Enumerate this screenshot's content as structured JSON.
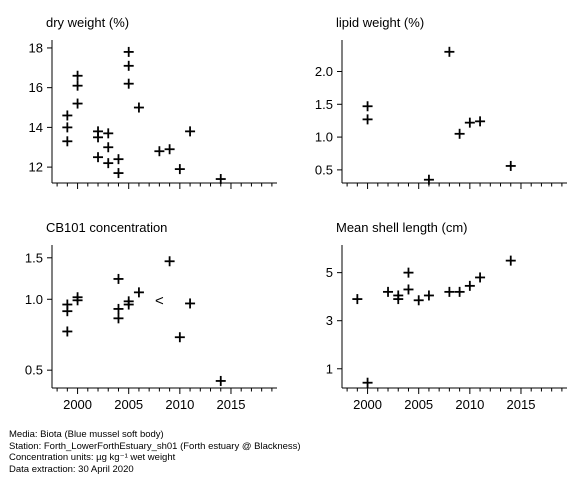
{
  "chart_data": [
    {
      "type": "scatter",
      "title": "dry weight (%)",
      "xlim": [
        1997.5,
        2019.5
      ],
      "ylim": [
        11.2,
        18.4
      ],
      "yticks": [
        12,
        14,
        16,
        18
      ],
      "yticklabels": [
        "12",
        "14",
        "16",
        "18"
      ],
      "show_xticklabels": false,
      "points": [
        {
          "x": 1999,
          "y": 14.6
        },
        {
          "x": 1999,
          "y": 14.0
        },
        {
          "x": 1999,
          "y": 13.3
        },
        {
          "x": 2000,
          "y": 16.6
        },
        {
          "x": 2000,
          "y": 16.1
        },
        {
          "x": 2000,
          "y": 15.2
        },
        {
          "x": 2002,
          "y": 13.8
        },
        {
          "x": 2002,
          "y": 13.5
        },
        {
          "x": 2002,
          "y": 12.5
        },
        {
          "x": 2003,
          "y": 13.7
        },
        {
          "x": 2003,
          "y": 13.0
        },
        {
          "x": 2003,
          "y": 12.2
        },
        {
          "x": 2004,
          "y": 12.4
        },
        {
          "x": 2004,
          "y": 11.7
        },
        {
          "x": 2005,
          "y": 17.8
        },
        {
          "x": 2005,
          "y": 17.1
        },
        {
          "x": 2005,
          "y": 16.2
        },
        {
          "x": 2006,
          "y": 15.0
        },
        {
          "x": 2008,
          "y": 12.8
        },
        {
          "x": 2009,
          "y": 12.9
        },
        {
          "x": 2010,
          "y": 11.9
        },
        {
          "x": 2011,
          "y": 13.8
        },
        {
          "x": 2014,
          "y": 11.4
        }
      ]
    },
    {
      "type": "scatter",
      "title": "lipid weight (%)",
      "xlim": [
        1997.5,
        2019.5
      ],
      "ylim": [
        0.3,
        2.48
      ],
      "yticks": [
        0.5,
        1.0,
        1.5,
        2.0
      ],
      "yticklabels": [
        "0.5",
        "1.0",
        "1.5",
        "2.0"
      ],
      "show_xticklabels": false,
      "points": [
        {
          "x": 2000,
          "y": 1.47
        },
        {
          "x": 2000,
          "y": 1.27
        },
        {
          "x": 2006,
          "y": 0.35
        },
        {
          "x": 2008,
          "y": 2.3
        },
        {
          "x": 2009,
          "y": 1.05
        },
        {
          "x": 2010,
          "y": 1.22
        },
        {
          "x": 2011,
          "y": 1.24
        },
        {
          "x": 2014,
          "y": 0.56
        }
      ]
    },
    {
      "type": "scatter",
      "title": "CB101 concentration",
      "xlim": [
        1997.5,
        2019.5
      ],
      "ylim": [
        0.42,
        1.7
      ],
      "ylog": true,
      "yticks": [
        0.5,
        1.0,
        1.5
      ],
      "yticklabels": [
        "0.5",
        "1.0",
        "1.5"
      ],
      "show_xticklabels": true,
      "xticks": [
        2000,
        2005,
        2010,
        2015
      ],
      "xticklabels": [
        "2000",
        "2005",
        "2010",
        "2015"
      ],
      "points": [
        {
          "x": 1999,
          "y": 0.95
        },
        {
          "x": 1999,
          "y": 0.89
        },
        {
          "x": 1999,
          "y": 0.73
        },
        {
          "x": 2000,
          "y": 1.02
        },
        {
          "x": 2000,
          "y": 0.99
        },
        {
          "x": 2004,
          "y": 1.22
        },
        {
          "x": 2004,
          "y": 0.91
        },
        {
          "x": 2004,
          "y": 0.83
        },
        {
          "x": 2005,
          "y": 0.98
        },
        {
          "x": 2005,
          "y": 0.95
        },
        {
          "x": 2006,
          "y": 1.07
        },
        {
          "x": 2009,
          "y": 1.45
        },
        {
          "x": 2010,
          "y": 0.69
        },
        {
          "x": 2011,
          "y": 0.96
        },
        {
          "x": 2014,
          "y": 0.45
        }
      ],
      "censored_points": [
        {
          "x": 2008,
          "y": 0.99,
          "marker": "<"
        }
      ]
    },
    {
      "type": "scatter",
      "title": "Mean shell length (cm)",
      "xlim": [
        1997.5,
        2019.5
      ],
      "ylim": [
        0.2,
        6.15
      ],
      "yticks": [
        1,
        3,
        5
      ],
      "yticklabels": [
        "1",
        "3",
        "5"
      ],
      "show_xticklabels": true,
      "xticks": [
        2000,
        2005,
        2010,
        2015
      ],
      "xticklabels": [
        "2000",
        "2005",
        "2010",
        "2015"
      ],
      "points": [
        {
          "x": 1999,
          "y": 3.9
        },
        {
          "x": 2000,
          "y": 0.42
        },
        {
          "x": 2002,
          "y": 4.2
        },
        {
          "x": 2003,
          "y": 4.05
        },
        {
          "x": 2003,
          "y": 3.9
        },
        {
          "x": 2004,
          "y": 5.0
        },
        {
          "x": 2004,
          "y": 4.3
        },
        {
          "x": 2005,
          "y": 3.85
        },
        {
          "x": 2006,
          "y": 4.05
        },
        {
          "x": 2008,
          "y": 4.2
        },
        {
          "x": 2009,
          "y": 4.2
        },
        {
          "x": 2010,
          "y": 4.45
        },
        {
          "x": 2011,
          "y": 4.8
        },
        {
          "x": 2014,
          "y": 5.5
        }
      ]
    }
  ],
  "footer": {
    "media": "Media: Biota (Blue mussel soft body)",
    "station": "Station: Forth_LowerForthEstuary_sh01 (Forth estuary @ Blackness)",
    "units": "Concentration units:  µg kg⁻¹ wet weight",
    "extraction": "Data extraction: 30 April 2020"
  }
}
